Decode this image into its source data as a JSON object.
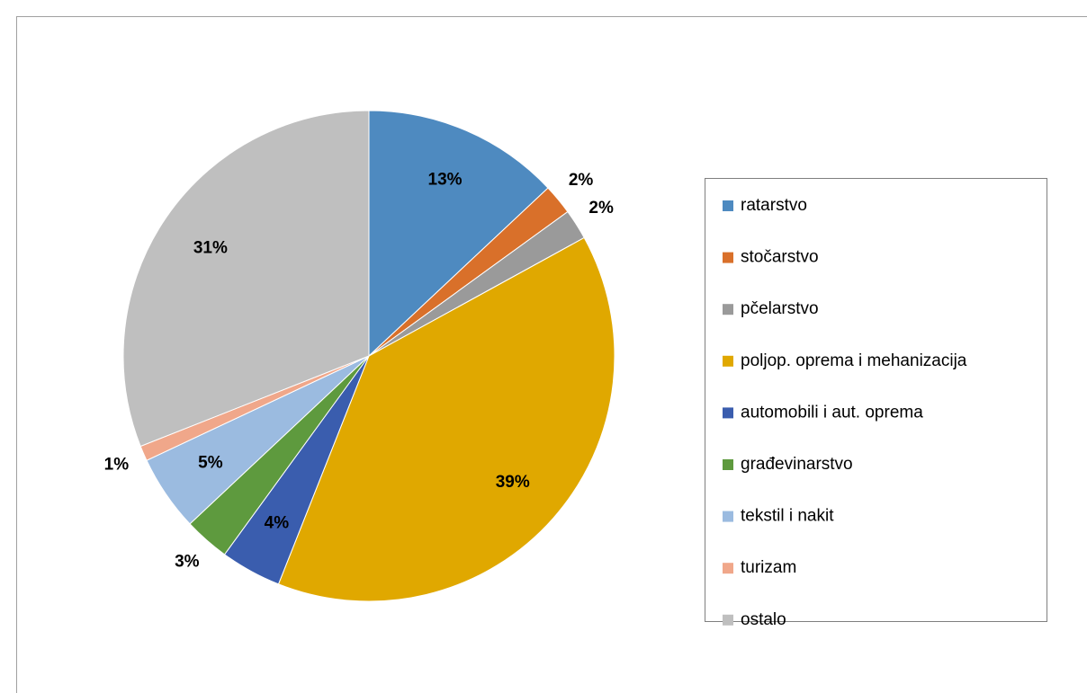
{
  "chart_data": {
    "type": "pie",
    "categories": [
      "ratarstvo",
      "stočarstvo",
      "pčelarstvo",
      "poljop. oprema i mehanizacija",
      "automobili i aut. oprema",
      "građevinarstvo",
      "tekstil i nakit",
      "turizam",
      "ostalo"
    ],
    "values": [
      13,
      2,
      2,
      39,
      4,
      3,
      5,
      1,
      31
    ],
    "value_labels": [
      "13%",
      "2%",
      "2%",
      "39%",
      "4%",
      "3%",
      "5%",
      "1%",
      "31%"
    ],
    "colors": [
      "#4e8ac0",
      "#d9702a",
      "#9a9a9a",
      "#e0a800",
      "#3a5dae",
      "#5e9a3e",
      "#9bbbe0",
      "#f0a78a",
      "#bfbfbf"
    ],
    "legend": "right"
  }
}
